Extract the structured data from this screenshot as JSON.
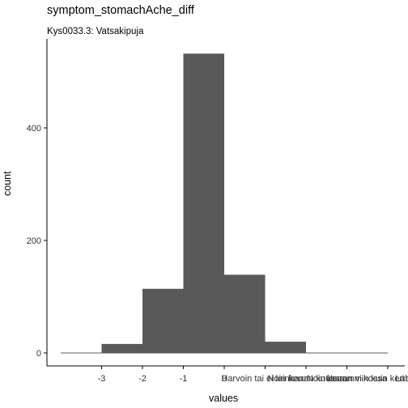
{
  "chart_data": {
    "type": "bar",
    "title": "symptom_stomachAche_diff",
    "subtitle": "Kys0033.3: Vatsakipuja",
    "xlabel": "values",
    "ylabel": "count",
    "x_tick_labels": [
      "-3",
      "-2",
      "-1",
      "0",
      "Harvoin tai ei lainkaan",
      "Noin kerran kuussa",
      "Noin kerran viikossa",
      "Useammin kuin kerran viikossa",
      "Lähes joka päivä"
    ],
    "x_tick_values": [
      -3,
      -2,
      -1,
      0,
      1,
      2,
      3,
      4,
      5
    ],
    "x_range": [
      -4.3,
      4.7
    ],
    "ylim": [
      0,
      560
    ],
    "y_ticks": [
      0,
      200,
      400
    ],
    "bins": [
      {
        "x_start": -4.0,
        "x_end": -3.0,
        "count": 0
      },
      {
        "x_start": -3.0,
        "x_end": -2.0,
        "count": 16
      },
      {
        "x_start": -2.0,
        "x_end": -1.0,
        "count": 114
      },
      {
        "x_start": -1.0,
        "x_end": 0.0,
        "count": 532
      },
      {
        "x_start": 0.0,
        "x_end": 1.0,
        "count": 139
      },
      {
        "x_start": 1.0,
        "x_end": 2.0,
        "count": 20
      },
      {
        "x_start": 2.0,
        "x_end": 3.0,
        "count": 0
      },
      {
        "x_start": 3.0,
        "x_end": 4.0,
        "count": 0
      },
      {
        "x_start": 4.0,
        "x_end": 4.0,
        "count": 0
      }
    ],
    "bar_color": "#595959",
    "axis_color": "#000000",
    "grid": false
  }
}
